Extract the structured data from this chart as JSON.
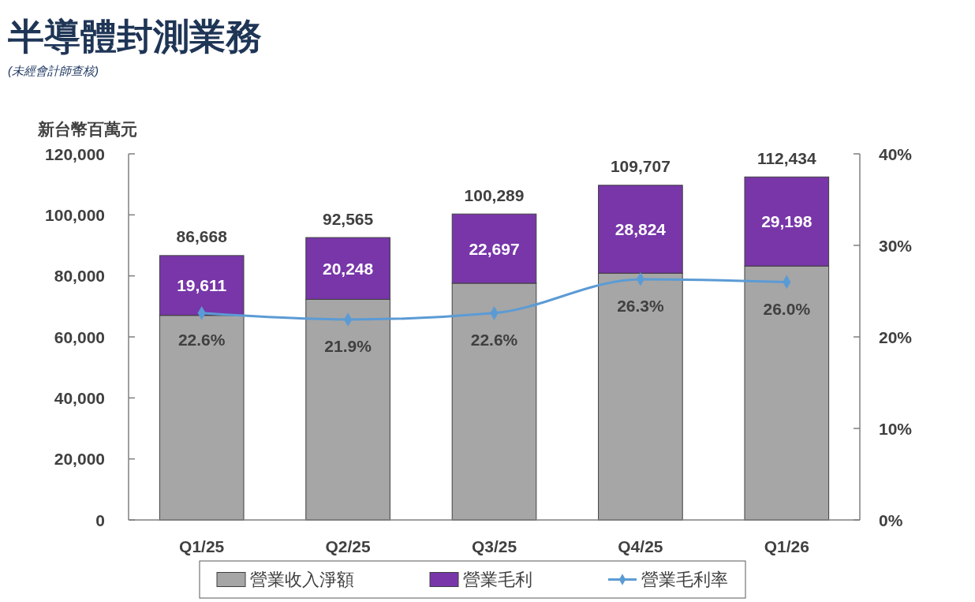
{
  "chart_data": {
    "type": "bar",
    "title": "半導體封測業務",
    "subtitle": "(未經會計師查核)",
    "ylabel": "新台幣百萬元",
    "categories": [
      "Q1/25",
      "Q2/25",
      "Q3/25",
      "Q4/25",
      "Q1/26"
    ],
    "stacked": true,
    "series": [
      {
        "name": "營業收入淨額",
        "color": "#a6a6a6",
        "values": [
          67057,
          72317,
          77592,
          80883,
          83236
        ]
      },
      {
        "name": "營業毛利",
        "color": "#7836a9",
        "values": [
          19611,
          20248,
          22697,
          28824,
          29198
        ],
        "value_labels": [
          "19,611",
          "20,248",
          "22,697",
          "28,824",
          "29,198"
        ]
      },
      {
        "name": "營業毛利率",
        "type": "line",
        "axis": "y2",
        "color": "#5b9bd5",
        "values": [
          22.6,
          21.9,
          22.6,
          26.3,
          26.0
        ],
        "value_labels": [
          "22.6%",
          "21.9%",
          "22.6%",
          "26.3%",
          "26.0%"
        ]
      }
    ],
    "totals": [
      "86,668",
      "92,565",
      "100,289",
      "109,707",
      "112,434"
    ],
    "ylim": [
      0,
      120000
    ],
    "yticks": [
      {
        "value": 0,
        "label": "0"
      },
      {
        "value": 20000,
        "label": "20,000"
      },
      {
        "value": 40000,
        "label": "40,000"
      },
      {
        "value": 60000,
        "label": "60,000"
      },
      {
        "value": 80000,
        "label": "80,000"
      },
      {
        "value": 100000,
        "label": "100,000"
      },
      {
        "value": 120000,
        "label": "120,000"
      }
    ],
    "y2lim": [
      0,
      40
    ],
    "y2ticks": [
      {
        "value": 0,
        "label": "0%"
      },
      {
        "value": 10,
        "label": "10%"
      },
      {
        "value": 20,
        "label": "20%"
      },
      {
        "value": 30,
        "label": "30%"
      },
      {
        "value": 40,
        "label": "40%"
      }
    ],
    "marker": "diamond",
    "legend": "bottom"
  }
}
